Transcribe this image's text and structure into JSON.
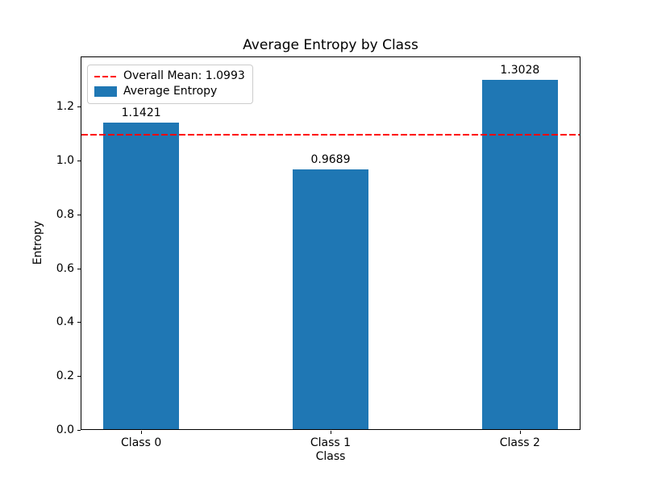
{
  "chart_data": {
    "type": "bar",
    "title": "Average Entropy by Class",
    "xlabel": "Class",
    "ylabel": "Entropy",
    "categories": [
      "Class 0",
      "Class 1",
      "Class 2"
    ],
    "series": [
      {
        "name": "Average Entropy",
        "values": [
          1.1421,
          0.9689,
          1.3028
        ]
      }
    ],
    "values": [
      1.1421,
      0.9689,
      1.3028
    ],
    "bar_value_labels": [
      "1.1421",
      "0.9689",
      "1.3028"
    ],
    "mean_line": {
      "value": 1.0993,
      "label": "Overall Mean: 1.0993",
      "color": "#ff0000",
      "style": "dashed"
    },
    "ylim": [
      0,
      1.386
    ],
    "xlim": [
      -0.32,
      2.32
    ],
    "bar_width": 0.4,
    "yticks": [
      "0.0",
      "0.2",
      "0.4",
      "0.6",
      "0.8",
      "1.0",
      "1.2"
    ],
    "grid": false,
    "colors": {
      "bar": "#1f77b4",
      "mean_line": "#ff0000",
      "spine": "#000000"
    },
    "legend": {
      "position": "upper left",
      "entries": [
        {
          "type": "line-dashed",
          "color": "#ff0000",
          "label": "Overall Mean: 1.0993"
        },
        {
          "type": "patch",
          "color": "#1f77b4",
          "label": "Average Entropy"
        }
      ]
    }
  }
}
